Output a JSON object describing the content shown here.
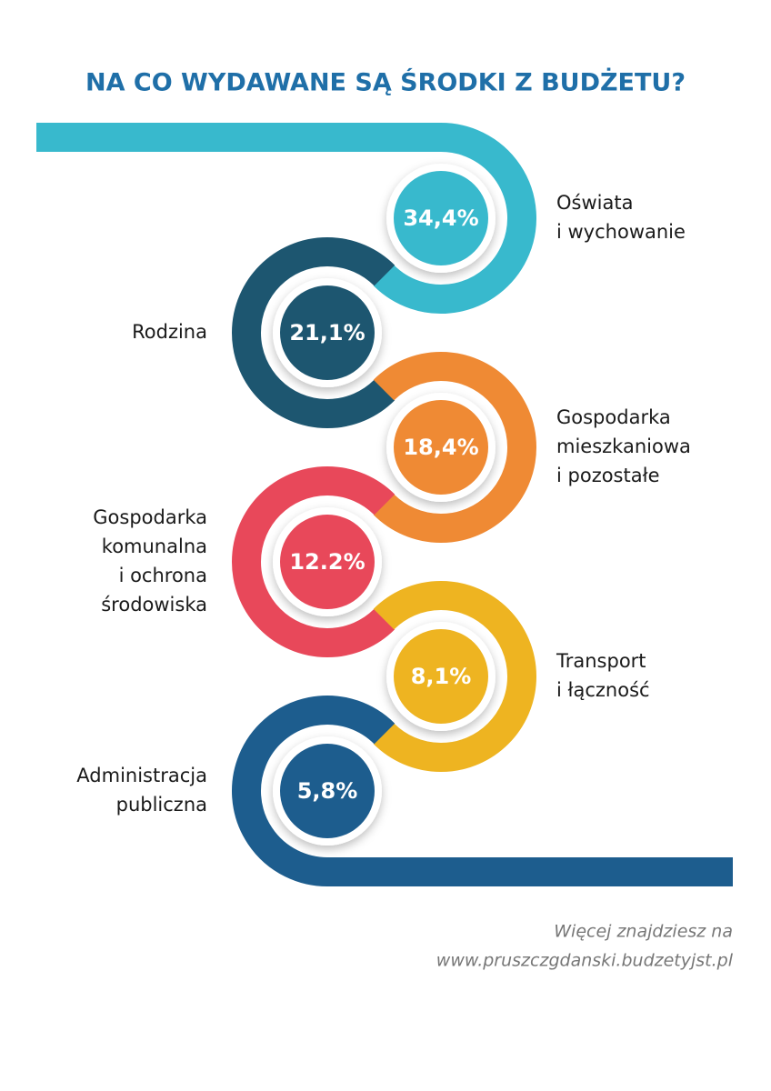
{
  "title": "NA CO WYDAWANE SĄ ŚRODKI Z BUDŻETU?",
  "items": [
    {
      "value": "34,4%",
      "label": [
        "Oświata",
        "i wychowanie"
      ],
      "color": "#38b9cd"
    },
    {
      "value": "21,1%",
      "label": [
        "Rodzina"
      ],
      "color": "#1d5670"
    },
    {
      "value": "18,4%",
      "label": [
        "Gospodarka",
        "mieszkaniowa",
        "i pozostałe"
      ],
      "color": "#ef8a34"
    },
    {
      "value": "12.2%",
      "label": [
        "Gospodarka",
        "komunalna",
        "i ochrona",
        "środowiska"
      ],
      "color": "#e8485a"
    },
    {
      "value": "8,1%",
      "label": [
        "Transport",
        "i łączność"
      ],
      "color": "#eeb421"
    },
    {
      "value": "5,8%",
      "label": [
        "Administracja",
        "publiczna"
      ],
      "color": "#1d5d8e"
    }
  ],
  "footer": [
    "Więcej znajdziesz na",
    "www.pruszczgdanski.budzetyjst.pl"
  ]
}
